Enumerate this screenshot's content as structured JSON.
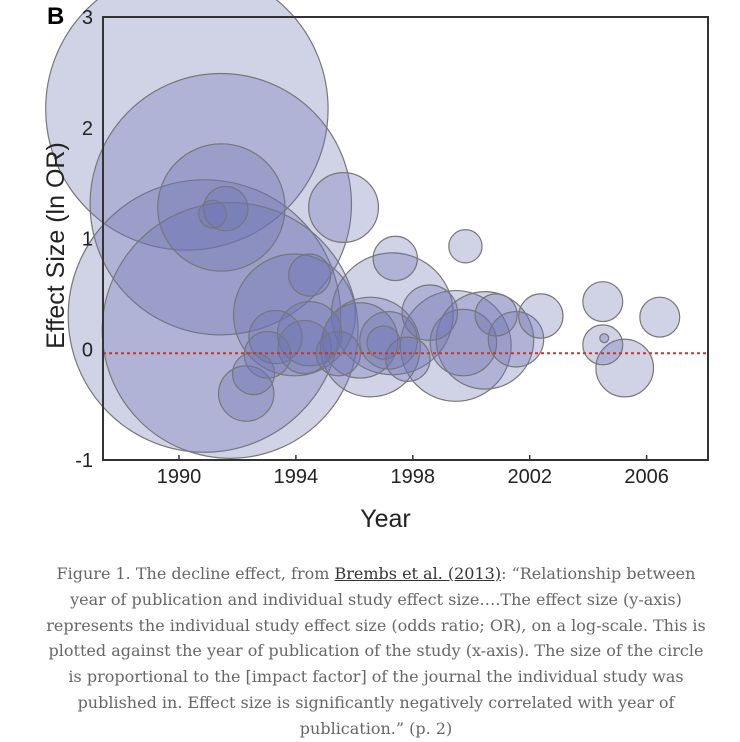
{
  "chart_data": {
    "type": "scatter",
    "panel_label": "B",
    "xlabel": "Year",
    "ylabel": "Effect Size (ln OR)",
    "xlim": [
      1987.4,
      2008.1
    ],
    "ylim": [
      -1,
      3
    ],
    "x_ticks": [
      "1990",
      "1994",
      "1998",
      "2002",
      "2006"
    ],
    "x_tick_values": [
      1990,
      1994,
      1998,
      2002,
      2006
    ],
    "y_ticks": [
      "-1",
      "0",
      "1",
      "2",
      "3"
    ],
    "y_tick_values": [
      -1,
      0,
      1,
      2,
      3
    ],
    "reference_line_y": 0,
    "reference_line_color": "#c0392b",
    "bubble_fill": "#6e74b0",
    "bubble_stroke": "#777777",
    "points": [
      {
        "x": 1990.27,
        "y": 2.17,
        "size": 2.55
      },
      {
        "x": 1991.43,
        "y": 1.31,
        "size": 2.36
      },
      {
        "x": 1991.45,
        "y": 1.28,
        "size": 1.15
      },
      {
        "x": 1991.6,
        "y": 1.27,
        "size": 0.4
      },
      {
        "x": 1991.15,
        "y": 1.22,
        "size": 0.25
      },
      {
        "x": 1990.87,
        "y": 0.3,
        "size": 2.46
      },
      {
        "x": 1991.75,
        "y": 0.17,
        "size": 2.31
      },
      {
        "x": 1995.63,
        "y": 1.28,
        "size": 0.63
      },
      {
        "x": 1994.47,
        "y": 0.67,
        "size": 0.38
      },
      {
        "x": 1994.47,
        "y": 0.14,
        "size": 0.58
      },
      {
        "x": 1993.95,
        "y": 0.31,
        "size": 1.1
      },
      {
        "x": 1993.3,
        "y": 0.11,
        "size": 0.48
      },
      {
        "x": 1993.03,
        "y": -0.05,
        "size": 0.42
      },
      {
        "x": 1992.55,
        "y": -0.22,
        "size": 0.38
      },
      {
        "x": 1992.3,
        "y": -0.4,
        "size": 0.5
      },
      {
        "x": 1994.3,
        "y": 0.02,
        "size": 0.48
      },
      {
        "x": 1995.45,
        "y": -0.04,
        "size": 0.4
      },
      {
        "x": 1996.2,
        "y": 0.08,
        "size": 0.68
      },
      {
        "x": 1996.55,
        "y": 0.02,
        "size": 0.9
      },
      {
        "x": 1997.3,
        "y": 0.32,
        "size": 1.1
      },
      {
        "x": 1997.17,
        "y": 0.08,
        "size": 0.52
      },
      {
        "x": 1997.0,
        "y": 0.06,
        "size": 0.3
      },
      {
        "x": 1997.83,
        "y": -0.09,
        "size": 0.4
      },
      {
        "x": 1997.4,
        "y": 0.82,
        "size": 0.4
      },
      {
        "x": 1998.58,
        "y": 0.33,
        "size": 0.5
      },
      {
        "x": 1999.8,
        "y": 0.93,
        "size": 0.3
      },
      {
        "x": 1999.47,
        "y": 0.03,
        "size": 1.0
      },
      {
        "x": 1999.73,
        "y": 0.06,
        "size": 0.6
      },
      {
        "x": 2000.47,
        "y": 0.08,
        "size": 0.88
      },
      {
        "x": 2000.85,
        "y": 0.31,
        "size": 0.38
      },
      {
        "x": 2001.53,
        "y": 0.09,
        "size": 0.5
      },
      {
        "x": 2002.38,
        "y": 0.3,
        "size": 0.4
      },
      {
        "x": 2004.5,
        "y": 0.43,
        "size": 0.36
      },
      {
        "x": 2004.5,
        "y": 0.04,
        "size": 0.36
      },
      {
        "x": 2004.55,
        "y": 0.1,
        "size": 0.08
      },
      {
        "x": 2005.25,
        "y": -0.17,
        "size": 0.52
      },
      {
        "x": 2006.45,
        "y": 0.29,
        "size": 0.36
      }
    ]
  },
  "caption": {
    "prefix": "Figure 1. The decline effect, from ",
    "link_text": "Brembs et al. (2013)",
    "suffix": ": “Relationship between year of publication and individual study effect size….The effect size (y-axis) represents the individual study effect size (odds ratio; OR), on a log-scale. This is plotted against the year of publication of the study (x-axis). The size of the circle is proportional to the [impact factor] of the journal the individual study was published in. Effect size is significantly negatively correlated with year of publication.” (p. 2)"
  }
}
